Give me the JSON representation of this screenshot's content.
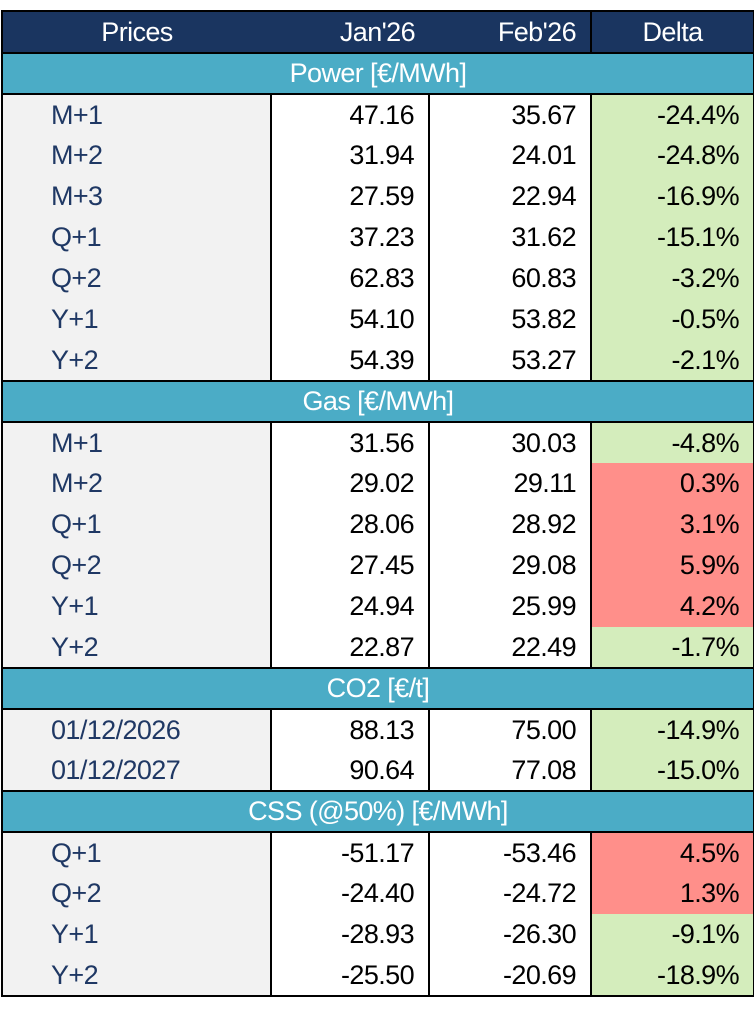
{
  "header": {
    "label": "Prices",
    "jan": "Jan'26",
    "feb": "Feb'26",
    "delta": "Delta"
  },
  "colors": {
    "header_bg": "#1a3560",
    "section_bg": "#4bacc6",
    "label_bg": "#f2f2f2",
    "label_text": "#1f3864",
    "delta_negative": "#d4edbc",
    "delta_positive": "#ff8f8a"
  },
  "sections": [
    {
      "title": "Power [€/MWh]",
      "rows": [
        {
          "label": "M+1",
          "jan": "47.16",
          "feb": "35.67",
          "delta": "-24.4%"
        },
        {
          "label": "M+2",
          "jan": "31.94",
          "feb": "24.01",
          "delta": "-24.8%"
        },
        {
          "label": "M+3",
          "jan": "27.59",
          "feb": "22.94",
          "delta": "-16.9%"
        },
        {
          "label": "Q+1",
          "jan": "37.23",
          "feb": "31.62",
          "delta": "-15.1%"
        },
        {
          "label": "Q+2",
          "jan": "62.83",
          "feb": "60.83",
          "delta": "-3.2%"
        },
        {
          "label": "Y+1",
          "jan": "54.10",
          "feb": "53.82",
          "delta": "-0.5%"
        },
        {
          "label": "Y+2",
          "jan": "54.39",
          "feb": "53.27",
          "delta": "-2.1%"
        }
      ]
    },
    {
      "title": "Gas [€/MWh]",
      "rows": [
        {
          "label": "M+1",
          "jan": "31.56",
          "feb": "30.03",
          "delta": "-4.8%"
        },
        {
          "label": "M+2",
          "jan": "29.02",
          "feb": "29.11",
          "delta": "0.3%"
        },
        {
          "label": "Q+1",
          "jan": "28.06",
          "feb": "28.92",
          "delta": "3.1%"
        },
        {
          "label": "Q+2",
          "jan": "27.45",
          "feb": "29.08",
          "delta": "5.9%"
        },
        {
          "label": "Y+1",
          "jan": "24.94",
          "feb": "25.99",
          "delta": "4.2%"
        },
        {
          "label": "Y+2",
          "jan": "22.87",
          "feb": "22.49",
          "delta": "-1.7%"
        }
      ]
    },
    {
      "title": "CO2 [€/t]",
      "rows": [
        {
          "label": "01/12/2026",
          "jan": "88.13",
          "feb": "75.00",
          "delta": "-14.9%"
        },
        {
          "label": "01/12/2027",
          "jan": "90.64",
          "feb": "77.08",
          "delta": "-15.0%"
        }
      ]
    },
    {
      "title": "CSS (@50%) [€/MWh]",
      "rows": [
        {
          "label": "Q+1",
          "jan": "-51.17",
          "feb": "-53.46",
          "delta": "4.5%"
        },
        {
          "label": "Q+2",
          "jan": "-24.40",
          "feb": "-24.72",
          "delta": "1.3%"
        },
        {
          "label": "Y+1",
          "jan": "-28.93",
          "feb": "-26.30",
          "delta": "-9.1%"
        },
        {
          "label": "Y+2",
          "jan": "-25.50",
          "feb": "-20.69",
          "delta": "-18.9%"
        }
      ]
    }
  ]
}
